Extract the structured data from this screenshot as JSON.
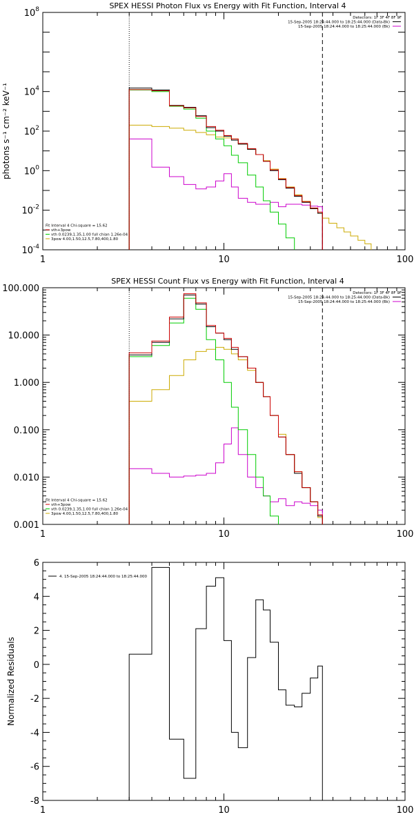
{
  "chart_data": [
    {
      "type": "line",
      "title": "SPEX HESSI Photon Flux vs Energy with Fit Function, Interval 4",
      "xscale": "log",
      "yscale": "log",
      "xlim": [
        1,
        100
      ],
      "ylim": [
        0.0001,
        100000000
      ],
      "ylabel": "photons s⁻¹ cm⁻² keV⁻¹",
      "xticks": [
        {
          "v": 1,
          "label": "1"
        },
        {
          "v": 10,
          "label": "10"
        },
        {
          "v": 100,
          "label": "100"
        }
      ],
      "yticks": [
        {
          "v": 0.0001,
          "base": "10",
          "exp": "-4"
        },
        {
          "v": 0.01,
          "base": "10",
          "exp": "-2"
        },
        {
          "v": 1,
          "base": "10",
          "exp": "0"
        },
        {
          "v": 100,
          "base": "10",
          "exp": "2"
        },
        {
          "v": 10000,
          "base": "10",
          "exp": "4"
        },
        {
          "v": 100000000,
          "base": "10",
          "exp": "8"
        }
      ],
      "vlines": [
        {
          "x": 3,
          "style": "dotted"
        },
        {
          "x": 35,
          "style": "dashed"
        }
      ],
      "legend_top": [
        {
          "text": "Detectors: 1F 3F 4F 8F 9F",
          "color": ""
        },
        {
          "text": "15-Sep-2005 18:24:44.000 to 18:25:44.000 (Data-Bk)",
          "color": "#000000"
        },
        {
          "text": "15-Sep-2005 18:24:44.000 to 18:25:44.000 (Bk)",
          "color": "#cc00cc"
        }
      ],
      "legend_bottom": [
        {
          "text": "Fit Interval  4    Chi-square = 15.62",
          "color": ""
        },
        {
          "text": "vth+3pow",
          "color": "#cc0000"
        },
        {
          "text": "vth 0.0239,1.35,1.00  full chian 1.26e-04",
          "color": "#00cc00"
        },
        {
          "text": "3pow 4.00,1.50,12.5,7.80,400,1.80",
          "color": "#ccaa00"
        }
      ],
      "series": [
        {
          "role": "data",
          "color": "#000000",
          "edges": [
            3,
            4,
            5,
            6,
            7,
            8,
            9,
            10,
            11,
            12,
            13.5,
            15,
            16.5,
            18,
            20,
            22,
            24.5,
            27,
            30,
            33,
            35
          ],
          "values": [
            15000,
            12000,
            2000,
            1600,
            600,
            150,
            100,
            55,
            35,
            22,
            12,
            6.5,
            3,
            1,
            0.35,
            0.13,
            0.05,
            0.025,
            0.012,
            0.007
          ]
        },
        {
          "role": "vth+3pow",
          "color": "#cc0000",
          "edges": [
            3,
            4,
            5,
            6,
            7,
            8,
            9,
            10,
            11,
            12,
            13.5,
            15,
            16.5,
            18,
            20,
            22,
            24.5,
            27,
            30,
            33,
            35
          ],
          "values": [
            12500,
            11000,
            1900,
            1500,
            550,
            170,
            110,
            60,
            40,
            24,
            13,
            6.5,
            3,
            1.1,
            0.38,
            0.14,
            0.055,
            0.027,
            0.013,
            0.008
          ]
        },
        {
          "role": "vth",
          "color": "#00cc00",
          "edges": [
            3,
            4,
            5,
            6,
            7,
            8,
            9,
            10,
            11,
            12,
            13.5,
            15,
            16.5,
            18,
            20,
            22,
            24.5
          ],
          "values": [
            12000,
            10000,
            1800,
            1300,
            450,
            100,
            40,
            18,
            6,
            2.5,
            0.6,
            0.15,
            0.03,
            0.008,
            0.002,
            0.0004,
            0.0001
          ]
        },
        {
          "role": "3pow",
          "color": "#ccaa00",
          "edges": [
            3,
            4,
            5,
            6,
            7,
            8,
            9,
            10,
            11,
            12,
            13.5,
            15,
            16.5,
            18,
            20,
            22,
            24.5,
            27,
            30,
            33,
            35,
            38,
            42,
            46,
            50,
            55,
            60,
            65
          ],
          "values": [
            200,
            170,
            140,
            110,
            85,
            65,
            50,
            45,
            40,
            22,
            12,
            6.5,
            3.2,
            1.2,
            0.4,
            0.15,
            0.06,
            0.028,
            0.012,
            0.007,
            0.004,
            0.0022,
            0.0013,
            0.0008,
            0.0005,
            0.0003,
            0.0002
          ]
        },
        {
          "role": "bk",
          "color": "#cc00cc",
          "edges": [
            3,
            4,
            5,
            6,
            7,
            8,
            9,
            10,
            11,
            12,
            13.5,
            15,
            16.5,
            18,
            20,
            22,
            24.5,
            27,
            30,
            33,
            35
          ],
          "values": [
            40,
            1.5,
            0.5,
            0.2,
            0.12,
            0.15,
            0.3,
            0.7,
            0.15,
            0.04,
            0.025,
            0.02,
            0.02,
            0.025,
            0.015,
            0.02,
            0.02,
            0.018,
            0.016,
            0.015
          ]
        }
      ]
    },
    {
      "type": "line",
      "title": "SPEX HESSI Count Flux vs Energy with Fit Function, Interval 4",
      "xscale": "log",
      "yscale": "log",
      "xlim": [
        1,
        100
      ],
      "ylim": [
        0.001,
        100
      ],
      "xticks": [
        {
          "v": 1,
          "label": "1"
        },
        {
          "v": 10,
          "label": "10"
        },
        {
          "v": 100,
          "label": "100"
        }
      ],
      "yticks": [
        {
          "v": 0.001,
          "label": "0.001"
        },
        {
          "v": 0.01,
          "label": "0.010"
        },
        {
          "v": 0.1,
          "label": "0.100"
        },
        {
          "v": 1,
          "label": "1.000"
        },
        {
          "v": 10,
          "label": "10.000"
        },
        {
          "v": 100,
          "label": "100.000"
        }
      ],
      "vlines": [
        {
          "x": 3,
          "style": "dotted"
        },
        {
          "x": 35,
          "style": "dashed"
        }
      ],
      "legend_top": [
        {
          "text": "Detectors: 1F 3F 4F 8F 9F",
          "color": ""
        },
        {
          "text": "15-Sep-2005 18:24:44.000 to 18:25:44.000 (Data-Bk)",
          "color": "#000000"
        },
        {
          "text": "15-Sep-2005 18:24:44.000 to 18:25:44.000 (Bk)",
          "color": "#cc00cc"
        }
      ],
      "legend_bottom": [
        {
          "text": "Fit Interval  4    Chi-square = 15.62",
          "color": ""
        },
        {
          "text": "vth+3pow",
          "color": "#cc0000"
        },
        {
          "text": "vth 0.0239,1.35,1.00  full chian 1.26e-04",
          "color": "#00cc00"
        },
        {
          "text": "3pow 4.00,1.50,12.5,7.80,400,1.80",
          "color": "#ccaa00"
        }
      ],
      "series": [
        {
          "role": "data",
          "color": "#000000",
          "edges": [
            3,
            4,
            5,
            6,
            7,
            8,
            9,
            10,
            11,
            12,
            13.5,
            15,
            16.5,
            18,
            20,
            22,
            24.5,
            27,
            30,
            33,
            35
          ],
          "values": [
            3.8,
            7,
            22,
            70,
            45,
            15,
            11,
            8,
            5,
            3.5,
            2,
            1,
            0.5,
            0.2,
            0.07,
            0.03,
            0.012,
            0.006,
            0.003,
            0.0015
          ]
        },
        {
          "role": "vth+3pow",
          "color": "#cc0000",
          "edges": [
            3,
            4,
            5,
            6,
            7,
            8,
            9,
            10,
            11,
            12,
            13.5,
            15,
            16.5,
            18,
            20,
            22,
            24.5,
            27,
            30,
            33,
            35
          ],
          "values": [
            4.2,
            7.5,
            24,
            75,
            48,
            16,
            11,
            8.5,
            5.5,
            3.5,
            2,
            1,
            0.5,
            0.2,
            0.07,
            0.03,
            0.013,
            0.006,
            0.003,
            0.0016
          ]
        },
        {
          "role": "vth",
          "color": "#00cc00",
          "edges": [
            3,
            4,
            5,
            6,
            7,
            8,
            9,
            10,
            11,
            12,
            13.5,
            15,
            16.5,
            18,
            20,
            22
          ],
          "values": [
            3.5,
            6,
            18,
            60,
            35,
            8,
            3,
            1,
            0.3,
            0.1,
            0.03,
            0.01,
            0.004,
            0.0015,
            0.0006
          ]
        },
        {
          "role": "3pow",
          "color": "#ccaa00",
          "edges": [
            3,
            4,
            5,
            6,
            7,
            8,
            9,
            10,
            11,
            12,
            13.5,
            15,
            16.5,
            18,
            20,
            22,
            24.5,
            27,
            30,
            33,
            35
          ],
          "values": [
            0.4,
            0.7,
            1.4,
            3,
            4.5,
            5,
            5.5,
            5,
            4,
            3,
            1.8,
            1,
            0.5,
            0.2,
            0.08,
            0.03,
            0.013,
            0.006,
            0.003,
            0.0014
          ]
        },
        {
          "role": "bk",
          "color": "#cc00cc",
          "edges": [
            3,
            4,
            5,
            6,
            7,
            8,
            9,
            10,
            11,
            12,
            13.5,
            15,
            16.5,
            18,
            20,
            22,
            24.5,
            27,
            30,
            33,
            35
          ],
          "values": [
            0.015,
            0.012,
            0.01,
            0.0105,
            0.011,
            0.012,
            0.02,
            0.05,
            0.11,
            0.03,
            0.01,
            0.006,
            0.004,
            0.003,
            0.0035,
            0.0025,
            0.003,
            0.0028,
            0.0025,
            0.002
          ]
        }
      ]
    },
    {
      "type": "line",
      "title": "",
      "xscale": "log",
      "yscale": "linear",
      "xlim": [
        1,
        100
      ],
      "ylim": [
        -8,
        6
      ],
      "ylabel": "Normalized Residuals",
      "xticks": [
        {
          "v": 1,
          "label": "1"
        },
        {
          "v": 10,
          "label": "10"
        },
        {
          "v": 100,
          "label": "100"
        }
      ],
      "yticks": [
        {
          "v": -8,
          "label": "-8"
        },
        {
          "v": -6,
          "label": "-6"
        },
        {
          "v": -4,
          "label": "-4"
        },
        {
          "v": -2,
          "label": "-2"
        },
        {
          "v": 0,
          "label": "0"
        },
        {
          "v": 2,
          "label": "2"
        },
        {
          "v": 4,
          "label": "4"
        },
        {
          "v": 6,
          "label": "6"
        }
      ],
      "legend_top": [
        {
          "text": "4. 15-Sep-2005 18:24:44.000 to 18:25:44.000",
          "color": "#000000"
        }
      ],
      "series": [
        {
          "role": "residuals",
          "color": "#000000",
          "edges": [
            3,
            4,
            5,
            6,
            7,
            8,
            9,
            10,
            11,
            12,
            13.5,
            15,
            16.5,
            18,
            20,
            22,
            24.5,
            27,
            30,
            33,
            35
          ],
          "values": [
            0.6,
            5.7,
            -4.4,
            -6.7,
            2.1,
            4.6,
            5.1,
            1.4,
            -4.0,
            -4.9,
            0.4,
            3.8,
            3.2,
            1.3,
            -1.5,
            -2.4,
            -2.5,
            -1.7,
            -0.8,
            -0.1
          ]
        }
      ]
    }
  ]
}
